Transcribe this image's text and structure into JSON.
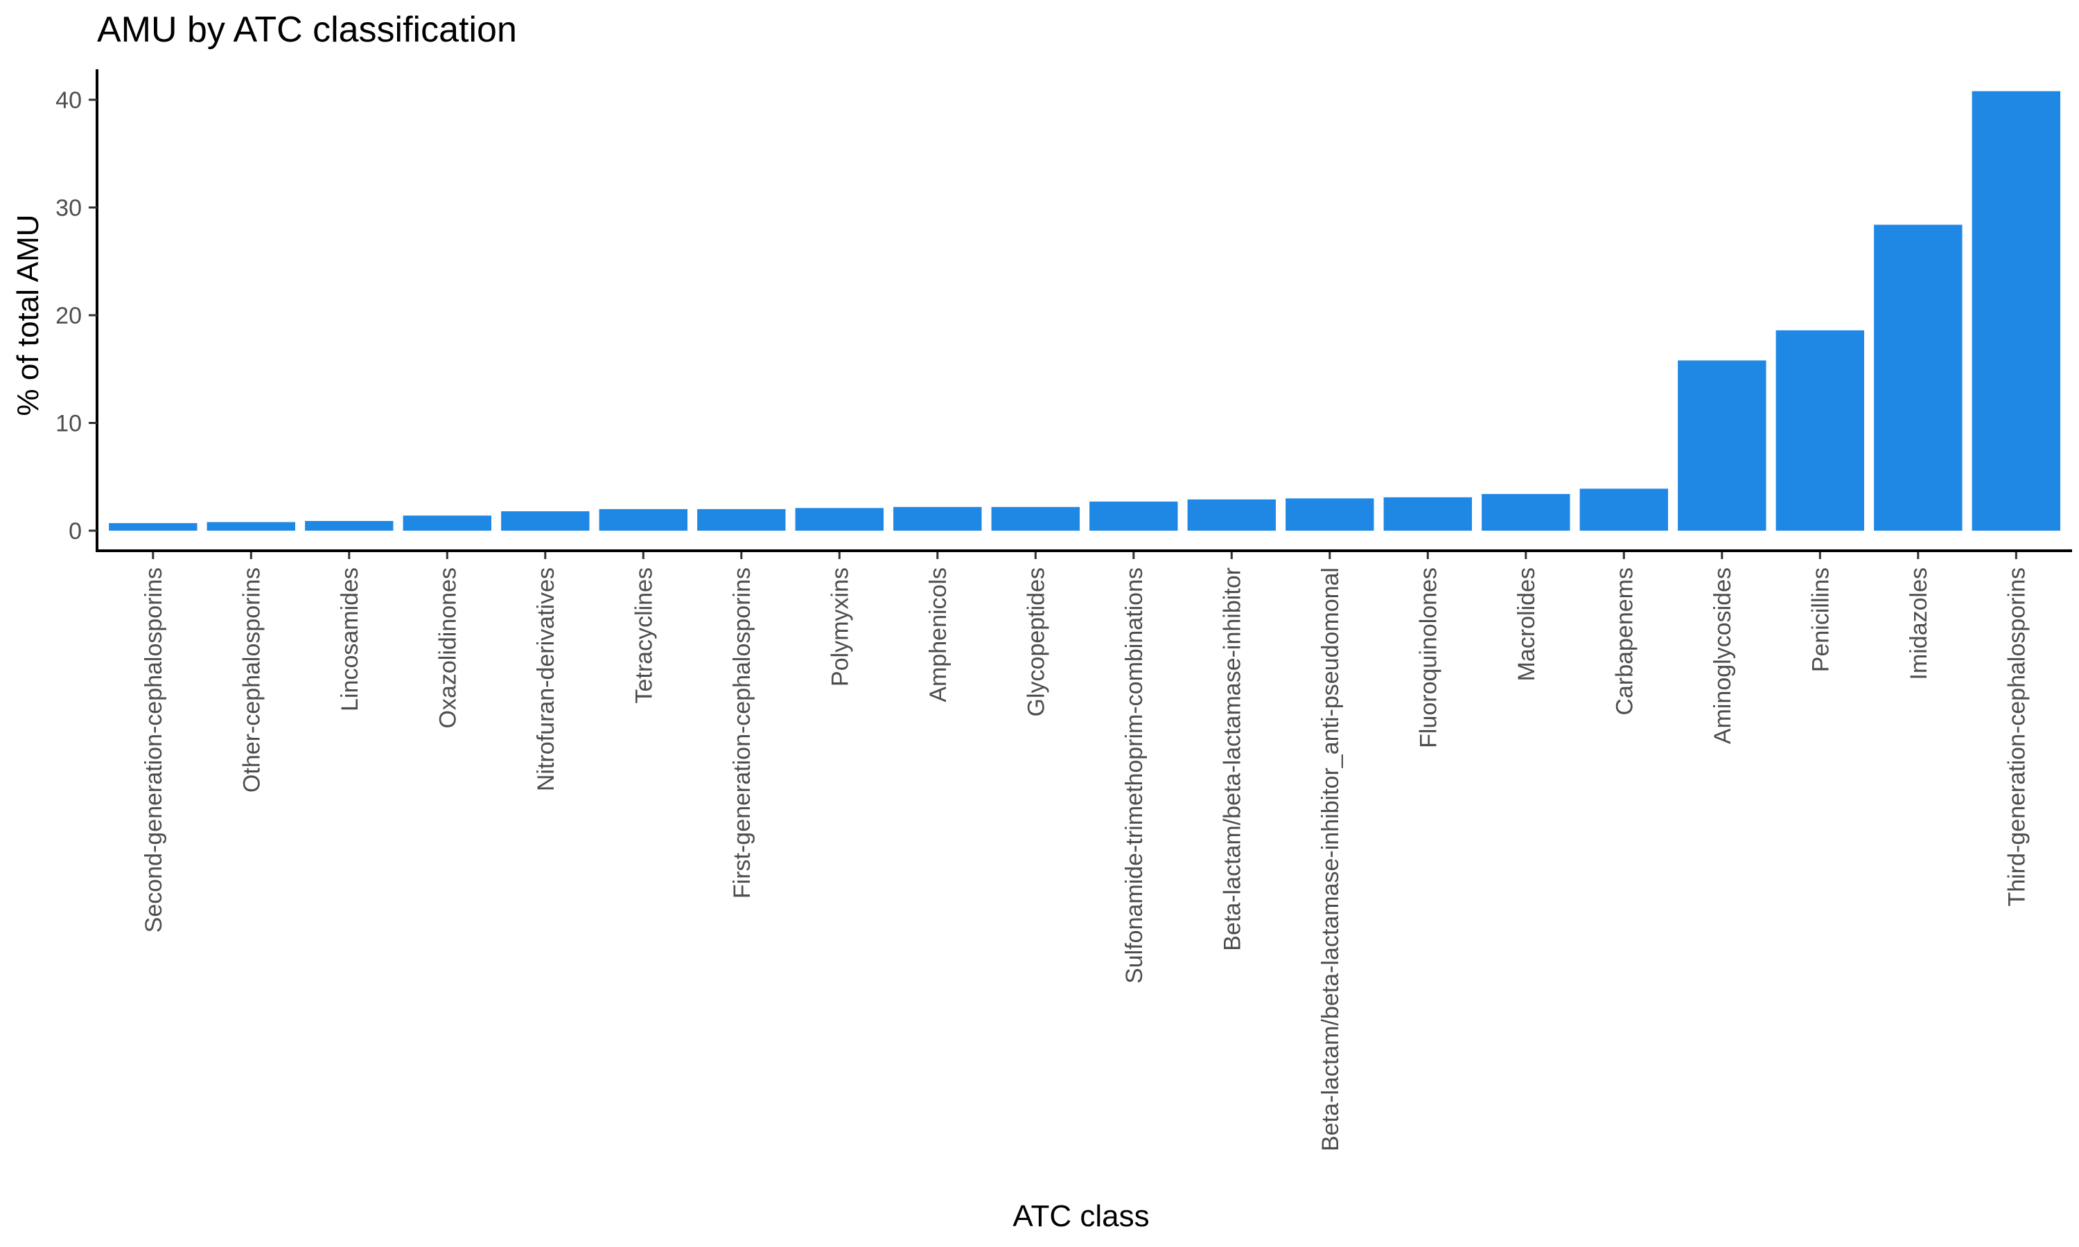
{
  "chart_data": {
    "type": "bar",
    "title": "AMU by ATC classification",
    "xlabel": "ATC class",
    "ylabel": "% of total AMU",
    "ylim": [
      0,
      41
    ],
    "yticks": [
      0,
      10,
      20,
      30,
      40
    ],
    "bar_color": "#1f88e5",
    "grid": false,
    "categories": [
      "Second-generation-cephalosporins",
      "Other-cephalosporins",
      "Lincosamides",
      "Oxazolidinones",
      "Nitrofuran-derivatives",
      "Tetracyclines",
      "First-generation-cephalosporins",
      "Polymyxins",
      "Amphenicols",
      "Glycopeptides",
      "Sulfonamide-trimethoprim-combinations",
      "Beta-lactam/beta-lactamase-inhibitor",
      "Beta-lactam/beta-lactamase-inhibitor_anti-pseudomonal",
      "Fluoroquinolones",
      "Macrolides",
      "Carbapenems",
      "Aminoglycosides",
      "Penicillins",
      "Imidazoles",
      "Third-generation-cephalosporins"
    ],
    "values": [
      0.7,
      0.8,
      0.9,
      1.4,
      1.8,
      2.0,
      2.0,
      2.1,
      2.2,
      2.2,
      2.7,
      2.9,
      3.0,
      3.1,
      3.4,
      3.9,
      15.8,
      18.6,
      28.4,
      40.8
    ]
  }
}
